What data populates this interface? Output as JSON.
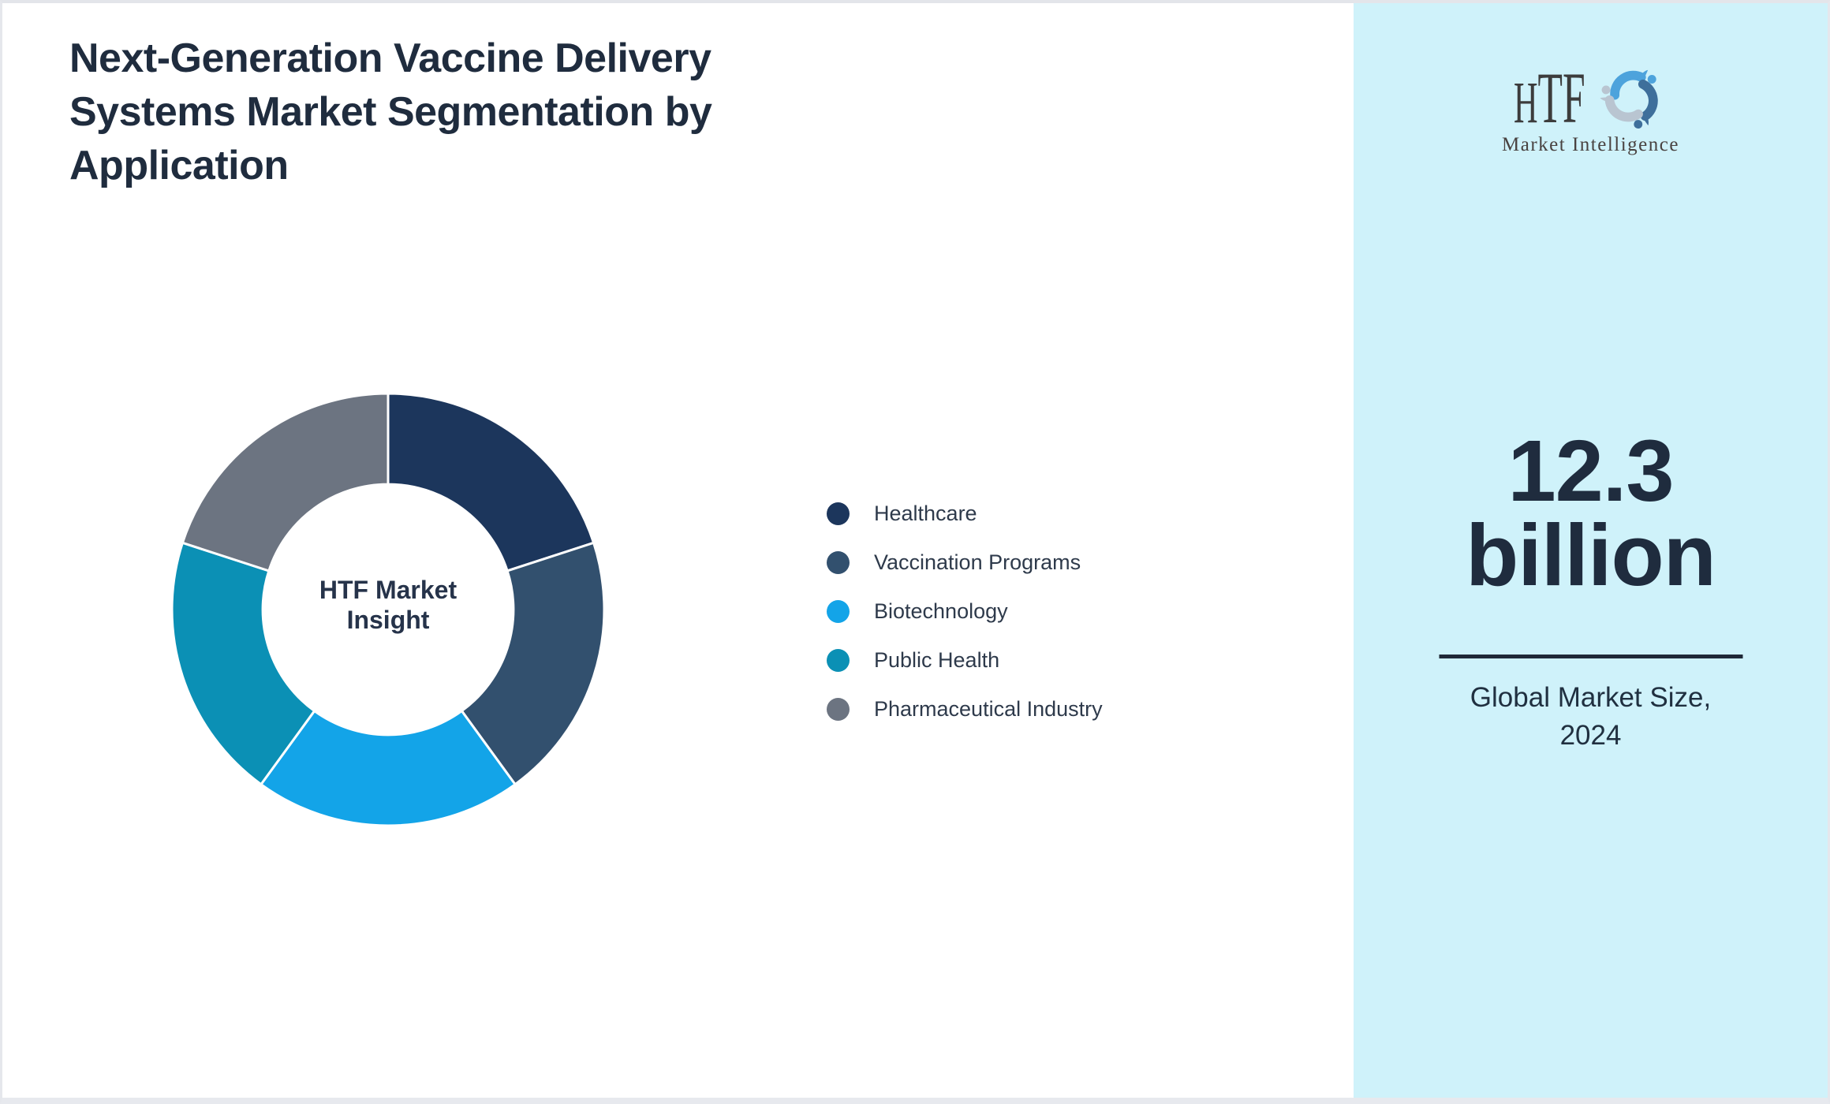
{
  "header": {
    "title": "Next-Generation Vaccine Delivery Systems Market Segmentation by Application"
  },
  "chart_data": {
    "type": "pie",
    "variant": "donut",
    "title": "Next-Generation Vaccine Delivery Systems Market Segmentation by Application",
    "center_label": "HTF Market Insight",
    "legend_position": "right",
    "start_angle_deg": 0,
    "direction": "clockwise",
    "inner_radius_ratio": 0.58,
    "segment_gap_color": "#FFFFFF",
    "series": [
      {
        "name": "Healthcare",
        "value": 20,
        "color": "#1C365C"
      },
      {
        "name": "Vaccination Programs",
        "value": 20,
        "color": "#32506E"
      },
      {
        "name": "Biotechnology",
        "value": 20,
        "color": "#13A4E8"
      },
      {
        "name": "Public Health",
        "value": 20,
        "color": "#0B90B5"
      },
      {
        "name": "Pharmaceutical Industry",
        "value": 20,
        "color": "#6C7481"
      }
    ]
  },
  "side_panel": {
    "background": "#CFF2FA",
    "logo": {
      "text": "HTF",
      "subtext": "Market Intelligence",
      "swirl_colors": [
        "#4DA3DC",
        "#3E6F9B",
        "#B9C5D1"
      ]
    },
    "market_value": "12.3 billion",
    "divider_color": "#1F2937",
    "caption": "Global Market Size, 2024"
  }
}
